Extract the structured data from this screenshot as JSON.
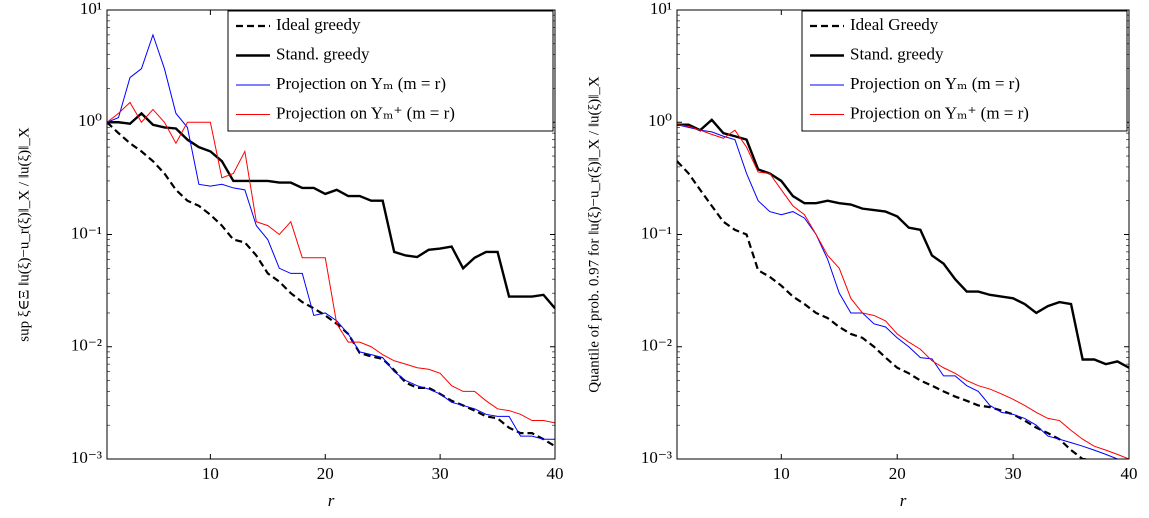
{
  "chart_data": [
    {
      "type": "line",
      "xlabel": "r",
      "ylabel": "sup ξ∈Ξ ‖u(ξ)−u_r(ξ)‖_X / ‖u(ξ)‖_X",
      "log_y": true,
      "legend": "upper right",
      "xlim": [
        1,
        40
      ],
      "xticks": [
        10,
        20,
        30,
        40
      ],
      "ylim": [
        0.001,
        10
      ],
      "yticks": [
        {
          "value": 0.001,
          "label": "10⁻³"
        },
        {
          "value": 0.01,
          "label": "10⁻²"
        },
        {
          "value": 0.1,
          "label": "10⁻¹"
        },
        {
          "value": 1,
          "label": "10⁰"
        },
        {
          "value": 10,
          "label": "10¹"
        }
      ],
      "x": [
        1,
        2,
        3,
        4,
        5,
        6,
        7,
        8,
        9,
        10,
        11,
        12,
        13,
        14,
        15,
        16,
        17,
        18,
        19,
        20,
        21,
        22,
        23,
        24,
        25,
        26,
        27,
        28,
        29,
        30,
        31,
        32,
        33,
        34,
        35,
        36,
        37,
        38,
        39,
        40
      ],
      "series": [
        {
          "name": "Ideal greedy",
          "color": "#000000",
          "dashed": true,
          "width": 2.2,
          "values": [
            1.0,
            0.8,
            0.65,
            0.55,
            0.45,
            0.35,
            0.25,
            0.2,
            0.18,
            0.15,
            0.12,
            0.09,
            0.085,
            0.065,
            0.045,
            0.038,
            0.03,
            0.025,
            0.022,
            0.019,
            0.016,
            0.013,
            0.0088,
            0.0082,
            0.0078,
            0.0062,
            0.0048,
            0.0043,
            0.0043,
            0.0038,
            0.0033,
            0.003,
            0.0027,
            0.0024,
            0.0023,
            0.0019,
            0.0017,
            0.0017,
            0.0015,
            0.0013
          ]
        },
        {
          "name": "Stand. greedy",
          "color": "#000000",
          "dashed": false,
          "width": 2.4,
          "values": [
            1.0,
            1.0,
            0.97,
            1.2,
            0.95,
            0.9,
            0.88,
            0.7,
            0.6,
            0.55,
            0.45,
            0.3,
            0.3,
            0.3,
            0.3,
            0.29,
            0.29,
            0.26,
            0.26,
            0.23,
            0.25,
            0.22,
            0.22,
            0.2,
            0.2,
            0.07,
            0.065,
            0.063,
            0.073,
            0.075,
            0.078,
            0.05,
            0.062,
            0.07,
            0.07,
            0.028,
            0.028,
            0.028,
            0.029,
            0.022
          ]
        },
        {
          "name": "Projection on Yₘ (m = r)",
          "color": "#0000ff",
          "dashed": false,
          "width": 1,
          "values": [
            1.0,
            1.1,
            2.5,
            3.0,
            6.0,
            3.0,
            1.2,
            0.9,
            0.28,
            0.27,
            0.28,
            0.26,
            0.25,
            0.12,
            0.09,
            0.05,
            0.045,
            0.045,
            0.019,
            0.02,
            0.017,
            0.013,
            0.009,
            0.0085,
            0.008,
            0.006,
            0.005,
            0.0045,
            0.0042,
            0.0038,
            0.0032,
            0.003,
            0.0028,
            0.0025,
            0.0024,
            0.0024,
            0.0016,
            0.0016,
            0.0015,
            0.0015
          ]
        },
        {
          "name": "Projection on Yₘ⁺ (m = r)",
          "color": "#ff0000",
          "dashed": false,
          "width": 1,
          "values": [
            1.0,
            1.2,
            1.5,
            1.0,
            1.3,
            1.0,
            0.65,
            1.0,
            1.0,
            1.0,
            0.32,
            0.35,
            0.55,
            0.13,
            0.12,
            0.1,
            0.13,
            0.062,
            0.062,
            0.062,
            0.016,
            0.011,
            0.011,
            0.01,
            0.0085,
            0.0075,
            0.007,
            0.0065,
            0.0063,
            0.0058,
            0.0045,
            0.004,
            0.004,
            0.0033,
            0.0028,
            0.0027,
            0.0025,
            0.0022,
            0.0022,
            0.0021
          ]
        }
      ]
    },
    {
      "type": "line",
      "xlabel": "r",
      "ylabel": "Quantile of prob. 0.97 for ‖u(ξ)−u_r(ξ)‖_X / ‖u(ξ)‖_X",
      "log_y": true,
      "legend": "upper right",
      "xlim": [
        1,
        40
      ],
      "xticks": [
        10,
        20,
        30,
        40
      ],
      "ylim": [
        0.001,
        10
      ],
      "yticks": [
        {
          "value": 0.001,
          "label": "10⁻³"
        },
        {
          "value": 0.01,
          "label": "10⁻²"
        },
        {
          "value": 0.1,
          "label": "10⁻¹"
        },
        {
          "value": 1,
          "label": "10⁰"
        },
        {
          "value": 10,
          "label": "10¹"
        }
      ],
      "x": [
        1,
        2,
        3,
        4,
        5,
        6,
        7,
        8,
        9,
        10,
        11,
        12,
        13,
        14,
        15,
        16,
        17,
        18,
        19,
        20,
        21,
        22,
        23,
        24,
        25,
        26,
        27,
        28,
        29,
        30,
        31,
        32,
        33,
        34,
        35,
        36,
        37,
        38,
        39,
        40
      ],
      "series": [
        {
          "name": "Ideal Greedy",
          "color": "#000000",
          "dashed": true,
          "width": 2.2,
          "values": [
            0.45,
            0.35,
            0.25,
            0.18,
            0.13,
            0.11,
            0.1,
            0.048,
            0.042,
            0.035,
            0.028,
            0.024,
            0.02,
            0.018,
            0.015,
            0.013,
            0.012,
            0.01,
            0.008,
            0.0065,
            0.0058,
            0.005,
            0.0045,
            0.004,
            0.0036,
            0.0033,
            0.003,
            0.0029,
            0.0027,
            0.0025,
            0.0022,
            0.0019,
            0.0017,
            0.0015,
            0.0012,
            0.001,
            0.00098,
            0.00095,
            0.0009,
            0.00088
          ]
        },
        {
          "name": "Stand. greedy",
          "color": "#000000",
          "dashed": false,
          "width": 2.4,
          "values": [
            0.95,
            0.95,
            0.85,
            1.05,
            0.8,
            0.75,
            0.7,
            0.38,
            0.35,
            0.3,
            0.22,
            0.19,
            0.19,
            0.2,
            0.19,
            0.185,
            0.17,
            0.165,
            0.16,
            0.145,
            0.115,
            0.11,
            0.065,
            0.055,
            0.04,
            0.031,
            0.031,
            0.029,
            0.028,
            0.027,
            0.024,
            0.02,
            0.023,
            0.025,
            0.024,
            0.0077,
            0.0077,
            0.007,
            0.0074,
            0.0065
          ]
        },
        {
          "name": "Projection on Yₘ (m = r)",
          "color": "#0000ff",
          "dashed": false,
          "width": 1,
          "values": [
            0.95,
            0.9,
            0.85,
            0.82,
            0.75,
            0.7,
            0.35,
            0.2,
            0.16,
            0.15,
            0.16,
            0.14,
            0.1,
            0.06,
            0.03,
            0.02,
            0.02,
            0.016,
            0.015,
            0.012,
            0.01,
            0.008,
            0.0078,
            0.0055,
            0.0055,
            0.0045,
            0.004,
            0.003,
            0.0026,
            0.0025,
            0.0023,
            0.002,
            0.0016,
            0.0015,
            0.0014,
            0.0013,
            0.0012,
            0.0011,
            0.001,
            0.0009
          ]
        },
        {
          "name": "Projection on Yₘ⁺ (m = r)",
          "color": "#ff0000",
          "dashed": false,
          "width": 1,
          "values": [
            0.95,
            0.92,
            0.85,
            0.78,
            0.72,
            0.85,
            0.6,
            0.36,
            0.35,
            0.25,
            0.18,
            0.15,
            0.1,
            0.065,
            0.05,
            0.027,
            0.02,
            0.019,
            0.017,
            0.013,
            0.011,
            0.0095,
            0.0075,
            0.0065,
            0.0058,
            0.005,
            0.0045,
            0.0042,
            0.0038,
            0.0034,
            0.003,
            0.0026,
            0.0023,
            0.0022,
            0.0018,
            0.0015,
            0.0013,
            0.0012,
            0.0011,
            0.001
          ]
        }
      ]
    }
  ]
}
